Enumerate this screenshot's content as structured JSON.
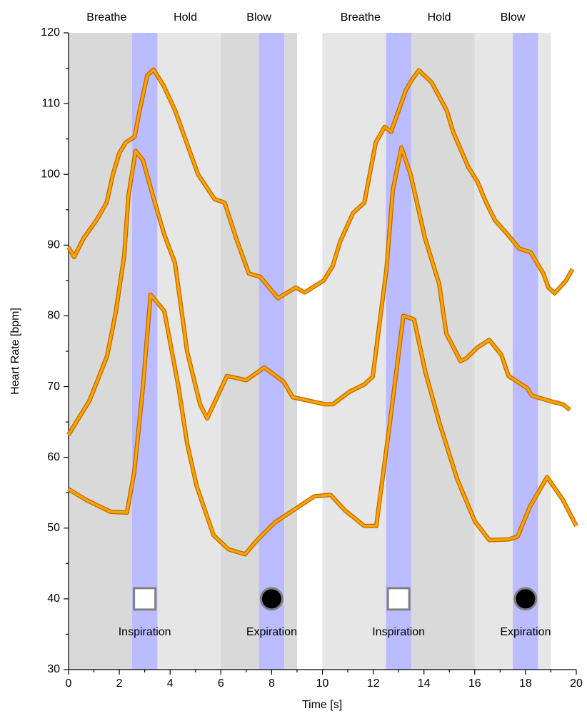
{
  "chart_data": {
    "type": "line",
    "xlabel": "Time [s]",
    "ylabel": "Heart Rate [bpm]",
    "xlim": [
      0,
      20
    ],
    "ylim": [
      30,
      120
    ],
    "xticks": [
      0,
      2,
      4,
      6,
      8,
      10,
      12,
      14,
      16,
      18,
      20
    ],
    "xminorticks": [
      1,
      3,
      5,
      7,
      9,
      11,
      13,
      15,
      17,
      19
    ],
    "yticks": [
      30,
      40,
      50,
      60,
      70,
      80,
      90,
      100,
      110,
      120
    ],
    "yminorticks": [
      35,
      45,
      55,
      65,
      75,
      85,
      95,
      105,
      115
    ],
    "bands": [
      {
        "start": 0,
        "end": 2.5,
        "color": "#d9d9d9"
      },
      {
        "start": 2.5,
        "end": 3.5,
        "color": "#bbbbff"
      },
      {
        "start": 3.5,
        "end": 6,
        "color": "#e6e6e6"
      },
      {
        "start": 6,
        "end": 7.5,
        "color": "#d9d9d9"
      },
      {
        "start": 7.5,
        "end": 8.5,
        "color": "#bbbbff"
      },
      {
        "start": 8.5,
        "end": 9,
        "color": "#d9d9d9"
      },
      {
        "start": 10,
        "end": 12.5,
        "color": "#e6e6e6"
      },
      {
        "start": 12.5,
        "end": 13.5,
        "color": "#bbbbff"
      },
      {
        "start": 13.5,
        "end": 16,
        "color": "#d9d9d9"
      },
      {
        "start": 16,
        "end": 17.5,
        "color": "#e6e6e6"
      },
      {
        "start": 17.5,
        "end": 18.5,
        "color": "#bbbbff"
      },
      {
        "start": 18.5,
        "end": 19,
        "color": "#e6e6e6"
      }
    ],
    "phases": [
      {
        "label": "Breathe",
        "x": 1.5
      },
      {
        "label": "Hold",
        "x": 4.6
      },
      {
        "label": "Blow",
        "x": 7.5
      },
      {
        "label": "Breathe",
        "x": 11.5
      },
      {
        "label": "Hold",
        "x": 14.6
      },
      {
        "label": "Blow",
        "x": 17.5
      }
    ],
    "markers": [
      {
        "x": 3,
        "y": 40,
        "marker": "square",
        "label": "Inspiration"
      },
      {
        "x": 8,
        "y": 40,
        "marker": "circle",
        "label": "Expiration"
      },
      {
        "x": 13,
        "y": 40,
        "marker": "square",
        "label": "Inspiration"
      },
      {
        "x": 18,
        "y": 40,
        "marker": "circle",
        "label": "Expiration"
      }
    ],
    "line_color": "#ffa200",
    "outline_color": "#b86a00",
    "series": [
      {
        "x": [
          0,
          0.22,
          0.6,
          1.1,
          1.5,
          1.75,
          2,
          2.25,
          2.6,
          2.8,
          3.1,
          3.35,
          3.75,
          4.2,
          4.5,
          4.8,
          5.1,
          5.75,
          6.15,
          6.6,
          7.1,
          7.55,
          8.25,
          8.95,
          9.3,
          10.05,
          10.4,
          10.7,
          11.2,
          11.65,
          12.1,
          12.45,
          12.7,
          13,
          13.3,
          13.55,
          13.8,
          14.3,
          14.9,
          15.15,
          15.75,
          16.1,
          16.45,
          16.8,
          17.3,
          17.75,
          18.2,
          18.7,
          18.9,
          19.15,
          19.6,
          19.85
        ],
        "values": [
          89.7,
          88.3,
          91,
          93.5,
          96,
          100,
          103,
          104.5,
          105.3,
          109,
          114,
          114.8,
          112.5,
          109,
          106,
          103,
          100,
          96.5,
          96,
          91,
          86,
          85.5,
          82.5,
          84,
          83.3,
          85,
          87,
          90.5,
          94.5,
          96,
          104.5,
          106.7,
          106,
          109,
          112,
          113.5,
          114.7,
          113,
          109,
          106,
          101,
          99,
          96,
          93.5,
          91.5,
          89.5,
          89,
          86,
          84,
          83.2,
          85,
          86.6
        ]
      },
      {
        "x": [
          0,
          0.82,
          1.52,
          1.86,
          2.19,
          2.36,
          2.64,
          2.93,
          3.32,
          3.77,
          4.19,
          4.67,
          5.18,
          5.46,
          6.24,
          7,
          7.71,
          8.47,
          8.83,
          10.1,
          10.41,
          11.08,
          11.65,
          11.98,
          12.52,
          12.77,
          13.11,
          13.47,
          14.04,
          14.6,
          14.88,
          15.44,
          15.67,
          16.1,
          16.57,
          17.05,
          17.33,
          18.06,
          18.26,
          19.02,
          19.47,
          19.75
        ],
        "values": [
          63.2,
          68,
          74.3,
          80.5,
          88.5,
          97,
          103.3,
          102,
          97,
          91.5,
          87.5,
          75,
          67.5,
          65.5,
          71.5,
          70.9,
          72.7,
          70.7,
          68.5,
          67.5,
          67.5,
          69.3,
          70.3,
          71.4,
          86.5,
          97.7,
          103.8,
          100,
          91,
          84.5,
          77.5,
          73.6,
          74,
          75.5,
          76.6,
          74.5,
          71.5,
          69.8,
          68.7,
          67.9,
          67.5,
          66.7
        ]
      },
      {
        "x": [
          0,
          0.68,
          1.66,
          2.3,
          2.59,
          2.93,
          3.23,
          3.77,
          4.33,
          4.67,
          5.04,
          5.71,
          6.3,
          6.95,
          7.43,
          8.13,
          8.55,
          9.68,
          10.32,
          10.89,
          11.65,
          12.12,
          12.66,
          13.19,
          13.61,
          14.06,
          14.6,
          15.3,
          16,
          16.57,
          17.33,
          17.69,
          18.17,
          18.85,
          19.47,
          20
        ],
        "values": [
          55.5,
          54,
          52.3,
          52.2,
          58,
          70,
          83,
          80.7,
          70,
          62,
          56,
          49,
          47,
          46.3,
          48.3,
          50.8,
          51.8,
          54.5,
          54.7,
          52.5,
          50.3,
          50.3,
          65,
          80,
          79.5,
          72,
          65,
          57,
          51,
          48.3,
          48.4,
          48.8,
          53,
          57.2,
          54,
          50.3
        ]
      }
    ]
  }
}
